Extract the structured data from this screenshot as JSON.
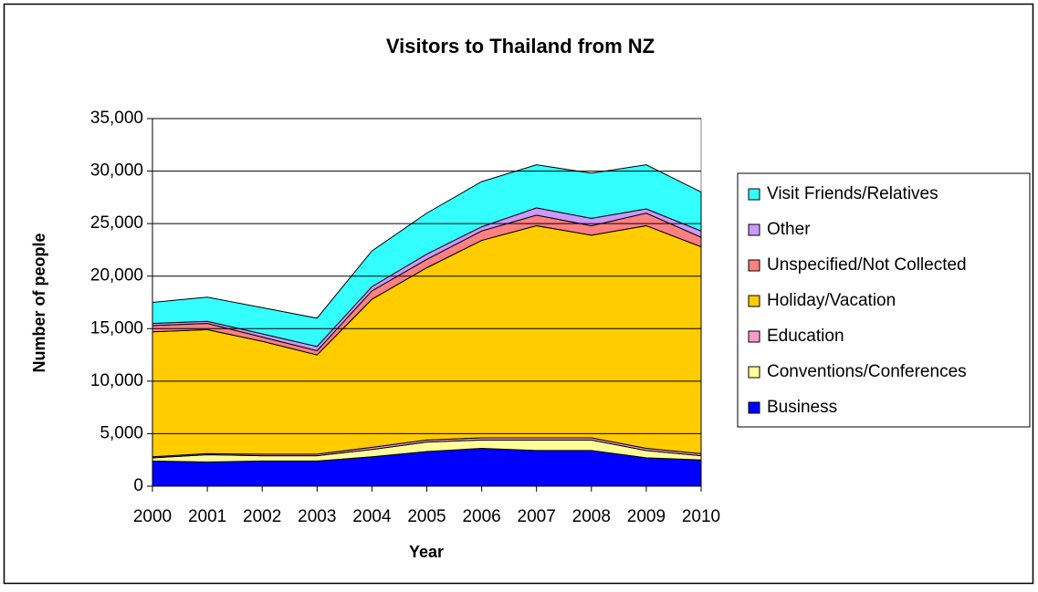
{
  "chart_data": {
    "type": "stacked-area",
    "title": "Visitors to Thailand from NZ",
    "x_label": "Year",
    "y_label": "Number of people",
    "categories": [
      "2000",
      "2001",
      "2002",
      "2003",
      "2004",
      "2005",
      "2006",
      "2007",
      "2008",
      "2009",
      "2010"
    ],
    "ylim": [
      0,
      35000
    ],
    "yticks": [
      0,
      {
        "value": 5000,
        "label": "5,000"
      },
      {
        "value": 10000,
        "label": "10,000"
      },
      {
        "value": 15000,
        "label": "15,000"
      },
      {
        "value": 20000,
        "label": "20,000"
      },
      {
        "value": 25000,
        "label": "25,000"
      },
      {
        "value": 30000,
        "label": "30,000"
      },
      {
        "value": 35000,
        "label": "35,000"
      }
    ],
    "grid": true,
    "legend": "right",
    "series": [
      {
        "name": "Business",
        "color": "#0000ff",
        "values": [
          2400,
          2300,
          2400,
          2400,
          2800,
          3300,
          3600,
          3400,
          3400,
          2700,
          2500
        ]
      },
      {
        "name": "Conventions/Conferences",
        "color": "#ffff99",
        "values": [
          300,
          700,
          500,
          500,
          700,
          900,
          800,
          1000,
          1000,
          700,
          400
        ]
      },
      {
        "name": "Education",
        "color": "#ff99cc",
        "values": [
          100,
          100,
          150,
          150,
          200,
          200,
          200,
          200,
          200,
          200,
          200
        ]
      },
      {
        "name": "Holiday/Vacation",
        "color": "#ffcc00",
        "values": [
          11900,
          11800,
          10750,
          9450,
          14100,
          16400,
          18800,
          20200,
          19300,
          21200,
          19700
        ]
      },
      {
        "name": "Unspecified/Not Collected",
        "color": "#ff8080",
        "values": [
          600,
          600,
          400,
          400,
          800,
          800,
          900,
          1000,
          900,
          1200,
          900
        ]
      },
      {
        "name": "Other",
        "color": "#cc99ff",
        "values": [
          200,
          200,
          300,
          400,
          400,
          500,
          400,
          700,
          700,
          400,
          600
        ]
      },
      {
        "name": "Visit Friends/Relatives",
        "color": "#33ffff",
        "values": [
          2000,
          2300,
          2500,
          2700,
          3400,
          3900,
          4300,
          4100,
          4300,
          4200,
          3700
        ]
      }
    ]
  }
}
